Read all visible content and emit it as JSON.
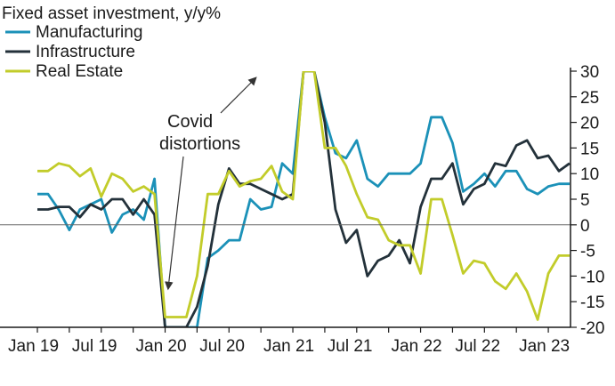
{
  "chart_data": {
    "type": "line",
    "title": "Fixed asset investment, y/y%",
    "xlabel": "",
    "ylabel": "",
    "ylim": [
      -20,
      30
    ],
    "yticks": [
      30,
      25,
      20,
      15,
      10,
      5,
      0,
      -5,
      -10,
      -15,
      -20
    ],
    "ytick_labels": [
      "30",
      "25",
      "20",
      "15",
      "10",
      "5",
      "0",
      "-5",
      "-10",
      "-15",
      "-20"
    ],
    "xticks": [
      "Jan 19",
      "Jul 19",
      "Jan 20",
      "Jul 20",
      "Jan 21",
      "Jul 21",
      "Jan 22",
      "Jul 22",
      "Jan 23"
    ],
    "x_months": [
      "2019-01",
      "2019-02",
      "2019-03",
      "2019-04",
      "2019-05",
      "2019-06",
      "2019-07",
      "2019-08",
      "2019-09",
      "2019-10",
      "2019-11",
      "2019-12",
      "2020-01",
      "2020-02",
      "2020-03",
      "2020-04",
      "2020-05",
      "2020-06",
      "2020-07",
      "2020-08",
      "2020-09",
      "2020-10",
      "2020-11",
      "2020-12",
      "2021-01",
      "2021-02",
      "2021-03",
      "2021-04",
      "2021-05",
      "2021-06",
      "2021-07",
      "2021-08",
      "2021-09",
      "2021-10",
      "2021-11",
      "2021-12",
      "2022-01",
      "2022-02",
      "2022-03",
      "2022-04",
      "2022-05",
      "2022-06",
      "2022-07",
      "2022-08",
      "2022-09",
      "2022-10",
      "2022-11",
      "2022-12",
      "2023-01",
      "2023-02",
      "2023-03"
    ],
    "legend_position": "top-left",
    "grid": false,
    "zero_line": true,
    "annotations": [
      {
        "text_lines": [
          "Covid",
          "distortions"
        ],
        "arrow_targets": [
          [
            "2021-01",
            30
          ],
          [
            "2020-03",
            -9
          ]
        ]
      }
    ],
    "series": [
      {
        "name": "Manufacturing",
        "color": "#1b91b8",
        "values": [
          6,
          6,
          3,
          -1,
          3,
          4,
          5,
          -1.5,
          2,
          3,
          1,
          9,
          -20,
          -20,
          -20,
          -20,
          -6.5,
          -5,
          -3,
          -3,
          5,
          3,
          3.5,
          12,
          10,
          30,
          30,
          21,
          14,
          13,
          16.5,
          9,
          7.5,
          10,
          10,
          10,
          12,
          21,
          21,
          16,
          6.5,
          8,
          10,
          7.5,
          10.5,
          10.5,
          7,
          6,
          7.5,
          8,
          8
        ]
      },
      {
        "name": "Infrastructure",
        "color": "#23313a",
        "values": [
          3,
          3,
          3.5,
          3.5,
          1.5,
          4,
          3,
          5,
          5,
          2,
          5,
          2,
          -20,
          -20,
          -20,
          -16,
          -8,
          4,
          11,
          8,
          8,
          7,
          6,
          5,
          6,
          30,
          30,
          20,
          3,
          -3.5,
          -1,
          -10,
          -7,
          -6,
          -3,
          -7.5,
          3.5,
          9,
          9,
          12,
          4,
          7,
          8,
          12,
          11.5,
          15.5,
          16.5,
          13,
          13.5,
          10.5,
          12
        ]
      },
      {
        "name": "Real Estate",
        "color": "#c2cc2a",
        "values": [
          10.5,
          10.5,
          12,
          11.5,
          9.5,
          11,
          5.5,
          10,
          9,
          6.5,
          7.5,
          6,
          -18,
          -18,
          -18,
          -10,
          6,
          6,
          10.5,
          7.5,
          8.5,
          9,
          11.5,
          6.5,
          5,
          30,
          30,
          15,
          15,
          11.5,
          6,
          1.5,
          1,
          -3,
          -4,
          -4,
          -9.5,
          5,
          5,
          -2,
          -9.5,
          -7,
          -7.5,
          -11,
          -12.5,
          -9.5,
          -13,
          -18.5,
          -9.5,
          -6,
          -6
        ]
      }
    ]
  }
}
